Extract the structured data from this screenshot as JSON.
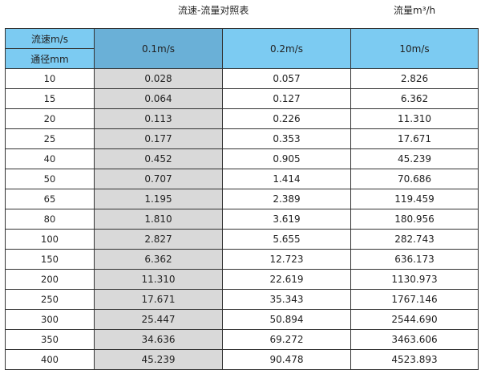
{
  "title": "流速-流量对照表",
  "unit_label": "流量m³/h",
  "header": {
    "velocity_label": "流速m/s",
    "diameter_label": "通径mm",
    "columns": [
      "0.1m/s",
      "0.2m/s",
      "10m/s"
    ]
  },
  "colors": {
    "header": "#7ccbf2",
    "header_highlight": "#6ab0d7",
    "column_highlight": "#d9d9d9"
  },
  "rows": [
    [
      "10",
      "0.028",
      "0.057",
      "2.826"
    ],
    [
      "15",
      "0.064",
      "0.127",
      "6.362"
    ],
    [
      "20",
      "0.113",
      "0.226",
      "11.310"
    ],
    [
      "25",
      "0.177",
      "0.353",
      "17.671"
    ],
    [
      "40",
      "0.452",
      "0.905",
      "45.239"
    ],
    [
      "50",
      "0.707",
      "1.414",
      "70.686"
    ],
    [
      "65",
      "1.195",
      "2.389",
      "119.459"
    ],
    [
      "80",
      "1.810",
      "3.619",
      "180.956"
    ],
    [
      "100",
      "2.827",
      "5.655",
      "282.743"
    ],
    [
      "150",
      "6.362",
      "12.723",
      "636.173"
    ],
    [
      "200",
      "11.310",
      "22.619",
      "1130.973"
    ],
    [
      "250",
      "17.671",
      "35.343",
      "1767.146"
    ],
    [
      "300",
      "25.447",
      "50.894",
      "2544.690"
    ],
    [
      "350",
      "34.636",
      "69.272",
      "3463.606"
    ],
    [
      "400",
      "45.239",
      "90.478",
      "4523.893"
    ]
  ]
}
